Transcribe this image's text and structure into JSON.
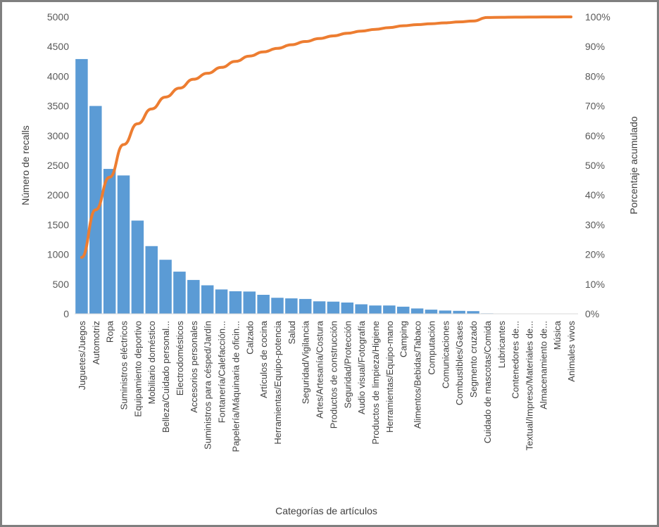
{
  "chart_data": {
    "type": "bar",
    "title": "",
    "xlabel": "Categorías de artículos",
    "ylabel": "Número de recalls",
    "y2label": "Porcentaje acumulado",
    "ylim": [
      0,
      5000
    ],
    "y2lim": [
      0,
      100
    ],
    "yticks": [
      "0",
      "500",
      "1000",
      "1500",
      "2000",
      "2500",
      "3000",
      "3500",
      "4000",
      "4500",
      "5000"
    ],
    "y2ticks": [
      "0%",
      "10%",
      "20%",
      "30%",
      "40%",
      "50%",
      "60%",
      "70%",
      "80%",
      "90%",
      "100%"
    ],
    "grid": false,
    "categories": [
      "Juguetes/Juegos",
      "Automotriz",
      "Ropa",
      "Suministros eléctricos",
      "Equipamiento deportivo",
      "Mobiliario doméstico",
      "Belleza/Cuidado personal...",
      "Electrodomésticos",
      "Accesorios personales",
      "Suministros para césped/Jardín",
      "Fontanería/Calefacción...",
      "Papelería/Máquinaria de oficin...",
      "Calzado",
      "Artículos de cocina",
      "Herramientas/Equipo-potencia",
      "Salud",
      "Seguridad/Vigilancia",
      "Artes/Artesanía/Costura",
      "Productos de construcción",
      "Seguridad/Protección",
      "Audio visual/Fotografía",
      "Productos de limpieza/Higiene",
      "Herramientas/Equipo-mano",
      "Camping",
      "Alimentos/Bebidas/Tabaco",
      "Computación",
      "Comunicaciones",
      "Combustibles/Gases",
      "Segmento cruzado",
      "Cuidado de mascotas/Comida",
      "Lubricantes",
      "Contenedores de...",
      "Textual/Impreso/Materiales de...",
      "Almacenamiento de...",
      "Música",
      "Animales vivos"
    ],
    "series": [
      {
        "type": "bar",
        "color": "#5b9bd5",
        "values": [
          4290,
          3500,
          2440,
          2330,
          1570,
          1140,
          910,
          710,
          570,
          480,
          410,
          380,
          375,
          320,
          270,
          260,
          250,
          210,
          205,
          190,
          160,
          140,
          140,
          120,
          90,
          70,
          55,
          50,
          45,
          8,
          6,
          5,
          4,
          3,
          2,
          1
        ]
      },
      {
        "type": "line",
        "color": "#ed7d31",
        "values": [
          19,
          35,
          46,
          57,
          64,
          69,
          73,
          76,
          79,
          81,
          83,
          85,
          86.8,
          88.2,
          89.4,
          90.6,
          91.7,
          92.7,
          93.6,
          94.5,
          95.2,
          95.8,
          96.4,
          97.0,
          97.4,
          97.7,
          98.0,
          98.3,
          98.6,
          99.8,
          99.85,
          99.9,
          99.93,
          99.96,
          99.98,
          100
        ]
      }
    ]
  }
}
